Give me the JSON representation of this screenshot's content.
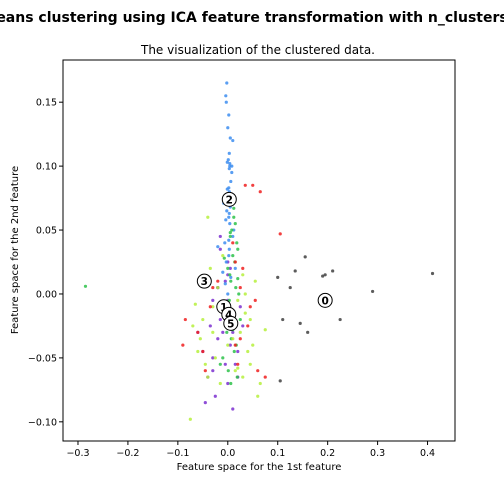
{
  "chart_data": {
    "type": "scatter",
    "suptitle": "eans clustering using ICA feature transformation with n_clusters",
    "title": "The visualization of the clustered data.",
    "xlabel": "Feature space for the 1st feature",
    "ylabel": "Feature space for the 2nd feature",
    "xlim": [
      -0.33,
      0.455
    ],
    "ylim": [
      -0.115,
      0.183
    ],
    "xticks": [
      -0.3,
      -0.2,
      -0.1,
      0.0,
      0.1,
      0.2,
      0.3,
      0.4
    ],
    "yticks": [
      -0.1,
      -0.05,
      0.0,
      0.05,
      0.1,
      0.15
    ],
    "xtick_labels": [
      "−0.3",
      "−0.2",
      "−0.1",
      "0.0",
      "0.1",
      "0.2",
      "0.3",
      "0.4"
    ],
    "ytick_labels": [
      "−0.10",
      "−0.05",
      "0.00",
      "0.05",
      "0.10",
      "0.15"
    ],
    "grid": false,
    "cluster_colors": [
      "#404040",
      "#7b2fd0",
      "#3c8df0",
      "#2dc24a",
      "#b6f03c",
      "#f01e1e"
    ],
    "centers": [
      {
        "label": "0",
        "x": 0.195,
        "y": -0.005
      },
      {
        "label": "1",
        "x": -0.008,
        "y": -0.01
      },
      {
        "label": "2",
        "x": 0.003,
        "y": 0.074
      },
      {
        "label": "3",
        "x": -0.047,
        "y": 0.01
      },
      {
        "label": "4",
        "x": 0.002,
        "y": -0.016
      },
      {
        "label": "5",
        "x": 0.006,
        "y": -0.023
      }
    ],
    "series": [
      {
        "cluster": 0,
        "x": [
          0.195,
          0.21,
          0.225,
          0.29,
          0.41,
          0.145,
          0.16,
          0.135,
          0.105,
          0.11,
          0.1,
          0.155,
          0.125,
          0.19,
          -0.02
        ],
        "y": [
          0.015,
          0.018,
          -0.02,
          0.002,
          0.016,
          -0.023,
          -0.03,
          0.018,
          -0.068,
          -0.02,
          0.013,
          0.029,
          0.005,
          0.014,
          0.005
        ]
      },
      {
        "cluster": 1,
        "x": [
          -0.005,
          -0.01,
          0.0,
          0.005,
          -0.015,
          0.01,
          -0.02,
          -0.035,
          -0.03,
          0.02,
          -0.03,
          -0.025,
          0.0,
          -0.04,
          0.015,
          -0.05,
          -0.02,
          0.005,
          -0.015,
          -0.03,
          0.01,
          -0.06,
          -0.01,
          0.0,
          0.03,
          0.02,
          -0.045,
          0.025,
          -0.005,
          0.01,
          -0.015,
          -0.005,
          0.0
        ],
        "y": [
          -0.01,
          -0.03,
          -0.005,
          -0.04,
          -0.02,
          -0.015,
          -0.035,
          -0.025,
          -0.05,
          -0.045,
          -0.06,
          -0.08,
          -0.07,
          -0.065,
          -0.055,
          -0.045,
          0.005,
          0.02,
          0.035,
          -0.005,
          -0.03,
          -0.03,
          -0.015,
          0.025,
          -0.025,
          -0.065,
          -0.085,
          -0.01,
          0.01,
          -0.09,
          0.045,
          -0.055,
          0.015
        ]
      },
      {
        "cluster": 2,
        "x": [
          -0.002,
          -0.004,
          -0.003,
          0.002,
          0.0,
          0.005,
          0.01,
          0.003,
          0.001,
          -0.001,
          0.004,
          0.008,
          0.006,
          0.002,
          0.003,
          0.0,
          0.001,
          0.005,
          -0.002,
          0.002,
          0.004,
          0.012,
          0.01,
          -0.006,
          0.003,
          0.002,
          -0.003,
          0.015,
          -0.01,
          0.006,
          -0.005,
          0.0,
          0.004,
          0.008,
          -0.008,
          -0.004,
          0.002,
          -0.02,
          0.003,
          0.005,
          0.003,
          -0.001
        ],
        "y": [
          0.165,
          0.155,
          0.15,
          0.14,
          0.13,
          0.122,
          0.12,
          0.11,
          0.105,
          0.103,
          0.1,
          0.095,
          0.088,
          0.083,
          0.08,
          0.077,
          0.071,
          0.068,
          0.065,
          0.06,
          0.055,
          0.05,
          0.045,
          0.04,
          0.035,
          0.03,
          0.025,
          0.02,
          0.017,
          0.013,
          0.008,
          0.0,
          0.102,
          0.1,
          0.071,
          0.058,
          0.042,
          0.037,
          0.063,
          0.075,
          0.098,
          0.082
        ]
      },
      {
        "cluster": 3,
        "x": [
          0.012,
          0.015,
          0.008,
          0.005,
          0.018,
          0.02,
          0.01,
          0.014,
          0.0,
          0.004,
          0.006,
          0.016,
          0.022,
          0.003,
          -0.005,
          0.011,
          0.025,
          0.009,
          -0.002,
          0.007,
          0.017,
          0.013,
          -0.01,
          -0.015,
          0.001,
          0.019,
          0.006,
          0.012,
          0.003,
          -0.285,
          0.02,
          0.01,
          -0.007,
          0.005
        ],
        "y": [
          0.06,
          0.055,
          0.05,
          0.045,
          0.04,
          0.035,
          0.03,
          0.025,
          0.02,
          0.015,
          0.01,
          0.005,
          0.0,
          -0.005,
          -0.01,
          -0.015,
          -0.02,
          -0.025,
          -0.03,
          -0.035,
          -0.04,
          -0.045,
          -0.05,
          -0.055,
          -0.06,
          -0.065,
          -0.07,
          0.067,
          0.072,
          0.006,
          0.012,
          -0.028,
          0.028,
          0.048
        ]
      },
      {
        "cluster": 4,
        "x": [
          -0.075,
          -0.06,
          -0.045,
          -0.04,
          -0.03,
          -0.05,
          -0.035,
          -0.02,
          -0.065,
          0.035,
          0.05,
          0.045,
          0.03,
          0.065,
          0.015,
          0.04,
          0.025,
          -0.025,
          -0.055,
          0.06,
          -0.015,
          0.02,
          0.055,
          0.01,
          0.045,
          -0.03,
          0.0,
          0.035,
          -0.07,
          0.075,
          -0.04,
          0.03,
          0.02,
          -0.01
        ],
        "y": [
          -0.098,
          -0.045,
          -0.055,
          -0.065,
          -0.03,
          -0.02,
          0.02,
          0.005,
          -0.008,
          -0.015,
          -0.04,
          -0.055,
          -0.065,
          -0.07,
          -0.06,
          -0.045,
          -0.03,
          -0.05,
          -0.035,
          -0.08,
          -0.07,
          -0.005,
          0.01,
          -0.035,
          -0.02,
          -0.01,
          -0.04,
          0.0,
          -0.025,
          -0.028,
          0.06,
          0.015,
          -0.058,
          0.03
        ]
      },
      {
        "cluster": 5,
        "x": [
          -0.09,
          -0.085,
          -0.06,
          -0.05,
          -0.045,
          0.035,
          0.05,
          0.03,
          0.065,
          0.06,
          0.045,
          0.015,
          0.025,
          -0.03,
          -0.035,
          0.04,
          0.02,
          0.105,
          0.01,
          -0.02,
          0.075,
          0.055,
          0.025,
          0.015
        ],
        "y": [
          -0.04,
          -0.02,
          -0.03,
          -0.045,
          -0.06,
          0.085,
          0.085,
          0.02,
          0.08,
          -0.06,
          -0.01,
          -0.04,
          -0.035,
          0.005,
          -0.01,
          -0.025,
          -0.055,
          0.047,
          0.04,
          0.01,
          -0.065,
          -0.005,
          0.005,
          0.025
        ]
      }
    ]
  }
}
